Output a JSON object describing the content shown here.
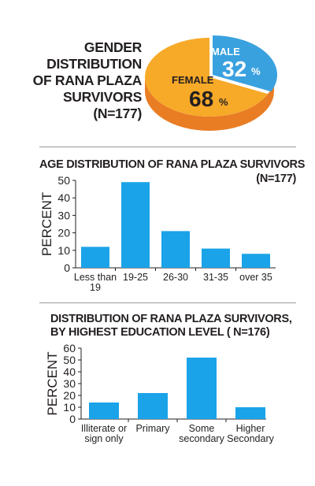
{
  "colors": {
    "male": "#3aa1df",
    "female": "#f7a928",
    "female_side": "#e97d24",
    "bar": "#1aa3e8",
    "text": "#231f20"
  },
  "chart_data": [
    {
      "type": "pie",
      "title": [
        "GENDER",
        "DISTRIBUTION",
        "OF RANA PLAZA",
        "SURVIVORS",
        "(N=177)"
      ],
      "categories": [
        "MALE",
        "FEMALE"
      ],
      "values": [
        32,
        68
      ],
      "value_labels": [
        "32",
        "68"
      ],
      "unit": "%"
    },
    {
      "type": "bar",
      "title": "AGE DISTRIBUTION OF RANA PLAZA SURVIVORS",
      "subtitle": "(N=177)",
      "ylabel": "PERCENT",
      "ylim": [
        0,
        50
      ],
      "yticks": [
        "0",
        "10",
        "20",
        "30",
        "40",
        "50"
      ],
      "categories": [
        [
          "Less than",
          "19"
        ],
        [
          "19-25"
        ],
        [
          "26-30"
        ],
        [
          "31-35"
        ],
        [
          "over 35"
        ]
      ],
      "values": [
        12,
        49,
        21,
        11,
        8
      ]
    },
    {
      "type": "bar",
      "title": [
        "DISTRIBUTION OF RANA PLAZA SURVIVORS,",
        "BY HIGHEST EDUCATION LEVEL ( N=176)"
      ],
      "ylabel": "PERCENT",
      "ylim": [
        0,
        60
      ],
      "yticks": [
        "0",
        "10",
        "20",
        "30",
        "40",
        "50",
        "60"
      ],
      "categories": [
        [
          "Illiterate or",
          "sign only"
        ],
        [
          "Primary"
        ],
        [
          "Some",
          "secondary"
        ],
        [
          "Higher",
          "Secondary"
        ]
      ],
      "values": [
        14,
        22,
        52,
        10
      ]
    }
  ]
}
